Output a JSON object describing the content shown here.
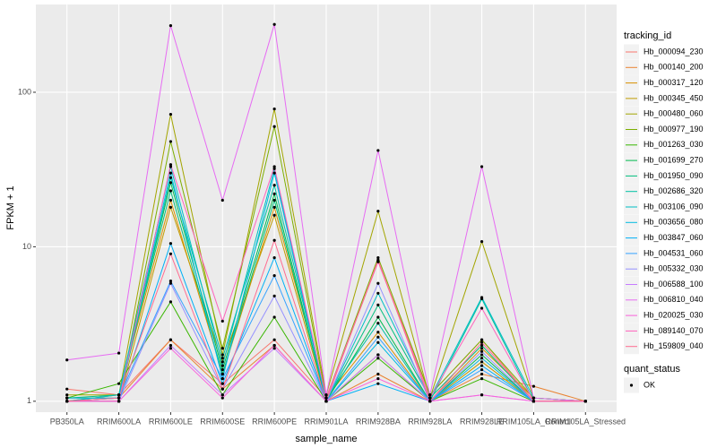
{
  "chart_data": {
    "type": "line",
    "x_label": "sample_name",
    "y_label": "FPKM + 1",
    "categories": [
      "PB350LA",
      "RRIM600LA",
      "RRIM600LE",
      "RRIM600SE",
      "RRIM600PE",
      "RRIM901LA",
      "RRIM928BA",
      "RRIM928LA",
      "RRIM928LE",
      "RRIM105LA_Control",
      "RRIM105LA_Stressed"
    ],
    "ylim": [
      0.85,
      370
    ],
    "yticks": [
      1,
      10,
      100
    ],
    "log_scale": true,
    "grid": true,
    "legend_title": "tracking_id",
    "point_legend_title": "quant_status",
    "point_legend_label": "OK",
    "point_color": "#000000",
    "series": [
      {
        "name": "Hb_000094_230",
        "color": "#F8766D",
        "values": [
          1.2,
          1.1,
          2.5,
          1.3,
          2.5,
          1.05,
          8,
          1.1,
          2.5,
          1.0,
          1.0
        ]
      },
      {
        "name": "Hb_000140_200",
        "color": "#EA8331",
        "values": [
          1.05,
          1.05,
          2.5,
          1.2,
          2.3,
          1.0,
          1.5,
          1.0,
          1.5,
          1.25,
          1.0
        ]
      },
      {
        "name": "Hb_000317_120",
        "color": "#D89000",
        "values": [
          1.0,
          1.1,
          20,
          1.5,
          18,
          1.05,
          2.8,
          1.0,
          2.2,
          1.05,
          1.0
        ]
      },
      {
        "name": "Hb_000345_450",
        "color": "#C09B00",
        "values": [
          1.0,
          1.0,
          18,
          1.8,
          16,
          1.0,
          2.0,
          1.0,
          1.8,
          1.0,
          1.0
        ]
      },
      {
        "name": "Hb_000480_060",
        "color": "#A3A500",
        "values": [
          1.1,
          1.1,
          72,
          2.0,
          78,
          1.1,
          17,
          1.05,
          10.8,
          1.05,
          1.0
        ]
      },
      {
        "name": "Hb_000977_190",
        "color": "#7CAE00",
        "values": [
          1.0,
          1.0,
          48,
          2.2,
          60,
          1.05,
          8.5,
          1.1,
          2.5,
          1.05,
          1.0
        ]
      },
      {
        "name": "Hb_001263_030",
        "color": "#39B600",
        "values": [
          1.05,
          1.3,
          4.4,
          1.1,
          3.5,
          1.0,
          1.9,
          1.0,
          1.4,
          1.0,
          1.0
        ]
      },
      {
        "name": "Hb_001699_270",
        "color": "#00BB4E",
        "values": [
          1.0,
          1.05,
          26,
          1.6,
          22,
          1.0,
          3.5,
          1.0,
          2.0,
          1.0,
          1.0
        ]
      },
      {
        "name": "Hb_001950_090",
        "color": "#00BF7D",
        "values": [
          1.05,
          1.1,
          23,
          1.5,
          20,
          1.0,
          4.2,
          1.05,
          2.3,
          1.0,
          1.0
        ]
      },
      {
        "name": "Hb_002686_320",
        "color": "#00C1A3",
        "values": [
          1.0,
          1.0,
          28,
          1.9,
          25,
          1.05,
          3.2,
          1.0,
          4.6,
          1.0,
          1.0
        ]
      },
      {
        "name": "Hb_003106_090",
        "color": "#00BFC4",
        "values": [
          1.0,
          1.1,
          33,
          1.7,
          32,
          1.0,
          5.0,
          1.05,
          4.7,
          1.05,
          1.0
        ]
      },
      {
        "name": "Hb_003656_080",
        "color": "#00BAE0",
        "values": [
          1.05,
          1.05,
          30,
          1.4,
          30,
          1.0,
          2.4,
          1.0,
          1.9,
          1.0,
          1.0
        ]
      },
      {
        "name": "Hb_003847_060",
        "color": "#00B0F6",
        "values": [
          1.0,
          1.0,
          10.5,
          1.3,
          8.5,
          1.0,
          1.3,
          1.0,
          1.7,
          1.0,
          1.0
        ]
      },
      {
        "name": "Hb_004531_060",
        "color": "#35A2FF",
        "values": [
          1.0,
          1.05,
          6,
          1.4,
          6.5,
          1.0,
          2.6,
          1.0,
          1.6,
          1.0,
          1.0
        ]
      },
      {
        "name": "Hb_005332_030",
        "color": "#9590FF",
        "values": [
          1.0,
          1.0,
          5.8,
          1.2,
          4.8,
          1.0,
          5.8,
          1.0,
          2.1,
          1.0,
          1.0
        ]
      },
      {
        "name": "Hb_006588_100",
        "color": "#C77CFF",
        "values": [
          1.0,
          1.0,
          2.3,
          1.1,
          2.2,
          1.0,
          2.0,
          1.0,
          1.1,
          1.0,
          1.0
        ]
      },
      {
        "name": "Hb_006810_040",
        "color": "#E76BF3",
        "values": [
          1.85,
          2.05,
          270,
          20,
          275,
          1.1,
          42,
          1.1,
          33,
          1.05,
          1.0
        ]
      },
      {
        "name": "Hb_020025_030",
        "color": "#FA62DB",
        "values": [
          1.0,
          1.0,
          2.2,
          1.05,
          2.3,
          1.0,
          1.4,
          1.0,
          1.1,
          1.0,
          1.0
        ]
      },
      {
        "name": "Hb_089140_070",
        "color": "#FF62BC",
        "values": [
          1.0,
          1.0,
          34,
          3.3,
          33,
          1.05,
          8.0,
          1.05,
          4.0,
          1.0,
          1.0
        ]
      },
      {
        "name": "Hb_159809_040",
        "color": "#FF6C91",
        "values": [
          1.0,
          1.05,
          9,
          1.2,
          11,
          1.0,
          8.2,
          1.0,
          2.4,
          1.0,
          1.0
        ]
      }
    ]
  }
}
